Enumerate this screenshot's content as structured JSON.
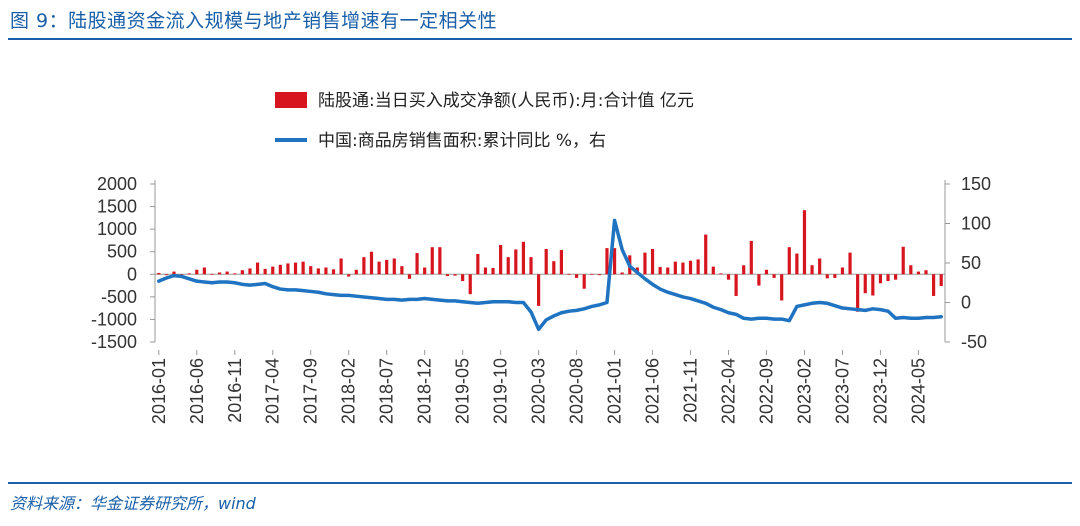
{
  "figure": {
    "title": "图 9：陆股通资金流入规模与地产销售增速有一定相关性",
    "source": "资料来源：华金证券研究所，wind"
  },
  "chart_data": {
    "type": "bar+line",
    "legend_position": "top-center",
    "grid": false,
    "x": [
      "2016-01",
      "2016-02",
      "2016-03",
      "2016-04",
      "2016-05",
      "2016-06",
      "2016-07",
      "2016-08",
      "2016-09",
      "2016-10",
      "2016-11",
      "2016-12",
      "2017-01",
      "2017-02",
      "2017-03",
      "2017-04",
      "2017-05",
      "2017-06",
      "2017-07",
      "2017-08",
      "2017-09",
      "2017-10",
      "2017-11",
      "2017-12",
      "2018-01",
      "2018-02",
      "2018-03",
      "2018-04",
      "2018-05",
      "2018-06",
      "2018-07",
      "2018-08",
      "2018-09",
      "2018-10",
      "2018-11",
      "2018-12",
      "2019-01",
      "2019-02",
      "2019-03",
      "2019-04",
      "2019-05",
      "2019-06",
      "2019-07",
      "2019-08",
      "2019-09",
      "2019-10",
      "2019-11",
      "2019-12",
      "2020-01",
      "2020-02",
      "2020-03",
      "2020-04",
      "2020-05",
      "2020-06",
      "2020-07",
      "2020-08",
      "2020-09",
      "2020-10",
      "2020-11",
      "2020-12",
      "2021-01",
      "2021-02",
      "2021-03",
      "2021-04",
      "2021-05",
      "2021-06",
      "2021-07",
      "2021-08",
      "2021-09",
      "2021-10",
      "2021-11",
      "2021-12",
      "2022-01",
      "2022-02",
      "2022-03",
      "2022-04",
      "2022-05",
      "2022-06",
      "2022-07",
      "2022-08",
      "2022-09",
      "2022-10",
      "2022-11",
      "2022-12",
      "2023-01",
      "2023-02",
      "2023-03",
      "2023-04",
      "2023-05",
      "2023-06",
      "2023-07",
      "2023-08",
      "2023-09",
      "2023-10",
      "2023-11",
      "2023-12",
      "2024-01",
      "2024-02",
      "2024-03",
      "2024-04",
      "2024-05",
      "2024-06",
      "2024-07",
      "2024-08"
    ],
    "x_tick_labels": [
      "2016-01",
      "2016-06",
      "2016-11",
      "2017-04",
      "2017-09",
      "2018-02",
      "2018-07",
      "2018-12",
      "2019-05",
      "2019-10",
      "2020-03",
      "2020-08",
      "2021-01",
      "2021-06",
      "2021-11",
      "2022-04",
      "2022-09",
      "2023-02",
      "2023-07",
      "2023-12",
      "2024-05"
    ],
    "left_axis": {
      "ylim": [
        -1500,
        2000
      ],
      "ticks": [
        2000,
        1500,
        1000,
        500,
        0,
        -500,
        -1000,
        -1500
      ]
    },
    "right_axis": {
      "ylim": [
        -50,
        150
      ],
      "ticks": [
        150,
        100,
        50,
        0,
        -50
      ]
    },
    "series": [
      {
        "name": "陆股通:当日买入成交净额(人民币):月:合计值 亿元",
        "type": "bar",
        "axis": "left",
        "color": "#d7151e",
        "values": [
          30,
          -20,
          60,
          -40,
          20,
          100,
          150,
          10,
          40,
          60,
          20,
          90,
          130,
          260,
          120,
          170,
          210,
          240,
          260,
          280,
          180,
          130,
          150,
          110,
          350,
          -50,
          100,
          380,
          500,
          280,
          320,
          350,
          180,
          -100,
          470,
          150,
          600,
          600,
          -40,
          -30,
          -150,
          -440,
          450,
          150,
          140,
          650,
          380,
          550,
          720,
          380,
          -700,
          560,
          290,
          540,
          10,
          -80,
          -320,
          10,
          -20,
          580,
          580,
          40,
          420,
          150,
          480,
          560,
          160,
          150,
          280,
          260,
          300,
          330,
          880,
          170,
          20,
          -120,
          -480,
          200,
          740,
          -250,
          100,
          -80,
          -580,
          600,
          460,
          1420,
          200,
          350,
          -90,
          -80,
          150,
          480,
          -830,
          -420,
          -470,
          -200,
          -150,
          -120,
          610,
          200,
          60,
          90,
          -480,
          -260
        ]
      },
      {
        "name": "中国:商品房销售面积:累计同比 %，右",
        "type": "line",
        "axis": "right",
        "color": "#1f73c1",
        "values": [
          27,
          31,
          34,
          33,
          30,
          27,
          26,
          25,
          26,
          26,
          25,
          23,
          22,
          23,
          24,
          20,
          17,
          16,
          16,
          15,
          14,
          13,
          11,
          10,
          9,
          9,
          8,
          7,
          6,
          5,
          4,
          4,
          3,
          4,
          4,
          5,
          4,
          3,
          2,
          2,
          1,
          0,
          -1,
          0,
          1,
          1,
          1,
          0,
          0,
          -12,
          -34,
          -22,
          -17,
          -13,
          -11,
          -10,
          -8,
          -5,
          -3,
          0,
          104,
          67,
          46,
          38,
          30,
          23,
          17,
          13,
          10,
          7,
          5,
          2,
          -1,
          -6,
          -9,
          -13,
          -15,
          -20,
          -21,
          -20,
          -20,
          -21,
          -21,
          -23,
          -5,
          -3,
          -1,
          0,
          -1,
          -4,
          -7,
          -8,
          -9,
          -10,
          -8,
          -9,
          -11,
          -20,
          -19,
          -20,
          -20,
          -19,
          -19,
          -18
        ]
      }
    ]
  }
}
